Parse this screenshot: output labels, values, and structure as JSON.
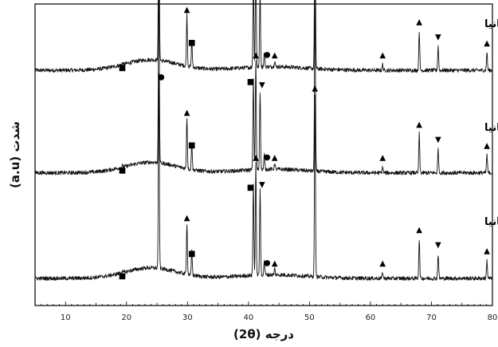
{
  "chart_data": {
    "type": "line",
    "xlabel": "درجه (2θ)",
    "ylabel": "شدت (a.u)",
    "xlim": [
      5,
      80
    ],
    "x_ticks": [
      "10",
      "20",
      "30",
      "40",
      "50",
      "60",
      "70",
      "80"
    ],
    "y_ticks_shown": false,
    "grid": false,
    "legend": "none",
    "series": [
      {
        "name": "یک درصد وزنی نانوتیتانیا",
        "baseline": 0.78,
        "peaks": [
          {
            "x": 19.3,
            "h": 0.006,
            "marker": "square"
          },
          {
            "x": 25.3,
            "h": 0.62,
            "marker": "circle"
          },
          {
            "x": 29.9,
            "h": 0.17,
            "marker": "triangle-up"
          },
          {
            "x": 30.7,
            "h": 0.09,
            "marker": "square"
          },
          {
            "x": 40.8,
            "h": 0.29,
            "marker": "square"
          },
          {
            "x": 41.2,
            "h": 0.36,
            "marker": "triangle-up"
          },
          {
            "x": 41.9,
            "h": 0.25,
            "marker": "triangle-down"
          },
          {
            "x": 42.6,
            "h": 0.05,
            "marker": "circle"
          },
          {
            "x": 44.3,
            "h": 0.02,
            "marker": "triangle-up"
          },
          {
            "x": 50.9,
            "h": 0.58,
            "marker": "triangle-up"
          },
          {
            "x": 62.0,
            "h": 0.02,
            "marker": "triangle-up"
          },
          {
            "x": 68.0,
            "h": 0.13,
            "marker": "triangle-up"
          },
          {
            "x": 71.1,
            "h": 0.08,
            "marker": "triangle-down"
          },
          {
            "x": 79.1,
            "h": 0.06,
            "marker": "triangle-up"
          }
        ]
      },
      {
        "name": "نیم درصد وزنی نانوتیتانیا",
        "baseline": 0.44,
        "peaks": [
          {
            "x": 19.3,
            "h": 0.006,
            "marker": "square"
          },
          {
            "x": 25.3,
            "h": 0.62,
            "marker": "circle"
          },
          {
            "x": 29.9,
            "h": 0.17,
            "marker": "triangle-up"
          },
          {
            "x": 30.7,
            "h": 0.09,
            "marker": "square"
          },
          {
            "x": 40.8,
            "h": 0.3,
            "marker": "square"
          },
          {
            "x": 41.2,
            "h": 0.36,
            "marker": "triangle-up"
          },
          {
            "x": 41.9,
            "h": 0.26,
            "marker": "triangle-down"
          },
          {
            "x": 42.6,
            "h": 0.05,
            "marker": "circle"
          },
          {
            "x": 44.3,
            "h": 0.02,
            "marker": "triangle-up"
          },
          {
            "x": 50.9,
            "h": 0.59,
            "marker": "triangle-up"
          },
          {
            "x": 62.0,
            "h": 0.02,
            "marker": "triangle-up"
          },
          {
            "x": 68.0,
            "h": 0.13,
            "marker": "triangle-up"
          },
          {
            "x": 71.1,
            "h": 0.08,
            "marker": "triangle-down"
          },
          {
            "x": 79.1,
            "h": 0.06,
            "marker": "triangle-up"
          }
        ]
      },
      {
        "name": "صفر درصد وزنی نانوتیتانیا",
        "baseline": 0.09,
        "peaks": [
          {
            "x": 19.3,
            "h": 0.006,
            "marker": "square"
          },
          {
            "x": 25.3,
            "h": 0.64,
            "marker": "circle"
          },
          {
            "x": 29.9,
            "h": 0.17,
            "marker": "triangle-up"
          },
          {
            "x": 30.7,
            "h": 0.08,
            "marker": "square"
          },
          {
            "x": 40.8,
            "h": 0.3,
            "marker": "square"
          },
          {
            "x": 41.2,
            "h": 0.37,
            "marker": "triangle-up"
          },
          {
            "x": 41.9,
            "h": 0.28,
            "marker": "triangle-down"
          },
          {
            "x": 42.6,
            "h": 0.05,
            "marker": "circle"
          },
          {
            "x": 44.3,
            "h": 0.02,
            "marker": "triangle-up"
          },
          {
            "x": 50.9,
            "h": 0.6,
            "marker": "triangle-up"
          },
          {
            "x": 62.0,
            "h": 0.02,
            "marker": "triangle-up"
          },
          {
            "x": 68.0,
            "h": 0.13,
            "marker": "triangle-up"
          },
          {
            "x": 71.1,
            "h": 0.08,
            "marker": "triangle-down"
          },
          {
            "x": 79.1,
            "h": 0.06,
            "marker": "triangle-up"
          }
        ]
      }
    ]
  }
}
